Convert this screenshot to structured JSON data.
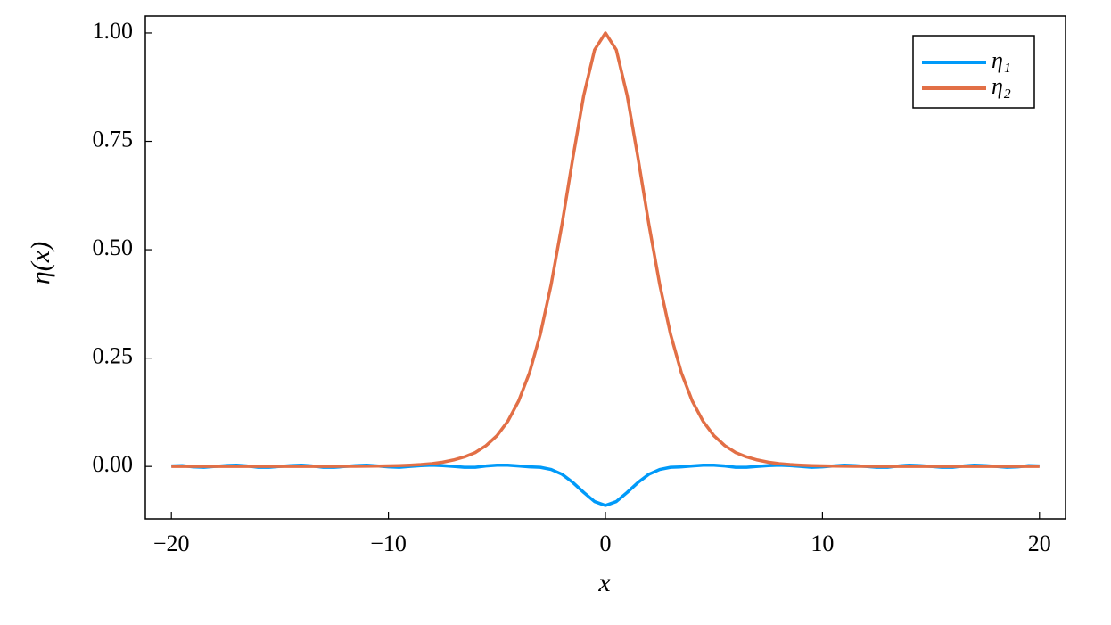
{
  "chart_data": {
    "type": "line",
    "xlabel": "x",
    "ylabel": "η(x)",
    "x": [
      -20,
      -19.5,
      -19,
      -18.5,
      -18,
      -17.5,
      -17,
      -16.5,
      -16,
      -15.5,
      -15,
      -14.5,
      -14,
      -13.5,
      -13,
      -12.5,
      -12,
      -11.5,
      -11,
      -10.5,
      -10,
      -9.5,
      -9,
      -8.5,
      -8,
      -7.5,
      -7,
      -6.5,
      -6,
      -5.5,
      -5,
      -4.5,
      -4,
      -3.5,
      -3,
      -2.5,
      -2,
      -1.5,
      -1,
      -0.5,
      0,
      0.5,
      1,
      1.5,
      2,
      2.5,
      3,
      3.5,
      4,
      4.5,
      5,
      5.5,
      6,
      6.5,
      7,
      7.5,
      8,
      8.5,
      9,
      9.5,
      10,
      10.5,
      11,
      11.5,
      12,
      12.5,
      13,
      13.5,
      14,
      14.5,
      15,
      15.5,
      16,
      16.5,
      17,
      17.5,
      18,
      18.5,
      19,
      19.5,
      20
    ],
    "series": [
      {
        "name": "η₁",
        "color": "#009af9",
        "values": [
          0.001,
          0.002,
          -0.001,
          -0.002,
          0,
          0.002,
          0.003,
          0.001,
          -0.002,
          -0.002,
          0,
          0.002,
          0.003,
          0.001,
          -0.002,
          -0.002,
          0,
          0.002,
          0.003,
          0.001,
          -0.001,
          -0.002,
          0,
          0.002,
          0.003,
          0.002,
          0,
          -0.002,
          -0.002,
          0.001,
          0.003,
          0.003,
          0.001,
          -0.001,
          -0.002,
          -0.007,
          -0.018,
          -0.037,
          -0.06,
          -0.081,
          -0.09,
          -0.081,
          -0.06,
          -0.037,
          -0.018,
          -0.007,
          -0.002,
          -0.001,
          0.001,
          0.003,
          0.003,
          0.001,
          -0.002,
          -0.002,
          0,
          0.002,
          0.003,
          0.002,
          0,
          -0.002,
          -0.001,
          0.001,
          0.003,
          0.002,
          0,
          -0.002,
          -0.002,
          0.001,
          0.003,
          0.002,
          0,
          -0.002,
          -0.002,
          0.001,
          0.003,
          0.002,
          0,
          -0.002,
          -0.001,
          0.002,
          0.001
        ]
      },
      {
        "name": "η₂",
        "color": "#e26f46",
        "values": [
          0,
          0,
          0,
          0,
          0,
          0,
          0,
          0,
          0,
          0,
          0,
          0,
          0,
          0,
          0.0001,
          0.0002,
          0.0003,
          0.0004,
          0.0006,
          0.0009,
          0.0013,
          0.002,
          0.003,
          0.0044,
          0.0066,
          0.0099,
          0.015,
          0.022,
          0.032,
          0.048,
          0.071,
          0.104,
          0.151,
          0.216,
          0.305,
          0.42,
          0.559,
          0.712,
          0.856,
          0.961,
          1,
          0.961,
          0.856,
          0.712,
          0.559,
          0.42,
          0.305,
          0.216,
          0.151,
          0.104,
          0.071,
          0.048,
          0.032,
          0.022,
          0.015,
          0.0099,
          0.0066,
          0.0044,
          0.003,
          0.002,
          0.0013,
          0.0009,
          0.0006,
          0.0004,
          0.0003,
          0.0002,
          0.0001,
          0,
          0,
          0,
          0,
          0,
          0,
          0,
          0,
          0,
          0,
          0,
          0,
          0,
          0
        ]
      }
    ],
    "xlim": [
      -21.2,
      21.2
    ],
    "xticks": [
      {
        "value": -20,
        "label": "−20"
      },
      {
        "value": -10,
        "label": "−10"
      },
      0,
      10,
      20
    ],
    "ylim": [
      -0.121,
      1.039
    ],
    "yticks": [
      {
        "value": 0,
        "label": "0.00"
      },
      {
        "value": 0.25,
        "label": "0.25"
      },
      {
        "value": 0.5,
        "label": "0.50"
      },
      {
        "value": 0.75,
        "label": "0.75"
      },
      {
        "value": 1,
        "label": "1.00"
      }
    ],
    "grid": false,
    "legend": "top right"
  }
}
